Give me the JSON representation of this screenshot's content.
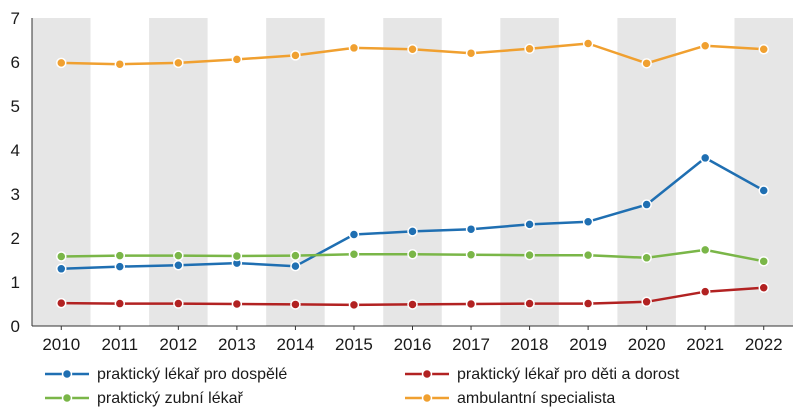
{
  "chart_data": {
    "type": "line",
    "title": "",
    "xlabel": "",
    "ylabel": "",
    "categories": [
      "2010",
      "2011",
      "2012",
      "2013",
      "2014",
      "2015",
      "2016",
      "2017",
      "2018",
      "2019",
      "2020",
      "2021",
      "2022"
    ],
    "ylim": [
      0,
      7
    ],
    "yticks": [
      "0",
      "1",
      "2",
      "3",
      "4",
      "5",
      "6",
      "7"
    ],
    "grid": "alternating vertical column bands",
    "legend_position": "bottom",
    "series": [
      {
        "name": "praktický lékař pro dospělé",
        "color": "#1f6fb2",
        "values": [
          1.3,
          1.35,
          1.38,
          1.43,
          1.36,
          2.08,
          2.15,
          2.2,
          2.31,
          2.37,
          2.76,
          3.82,
          3.08
        ]
      },
      {
        "name": "praktický lékař pro děti a dorost",
        "color": "#b22222",
        "values": [
          0.52,
          0.51,
          0.51,
          0.5,
          0.49,
          0.48,
          0.49,
          0.5,
          0.51,
          0.51,
          0.55,
          0.78,
          0.87
        ]
      },
      {
        "name": "praktický zubní lékař",
        "color": "#7ab648",
        "values": [
          1.58,
          1.6,
          1.6,
          1.59,
          1.6,
          1.63,
          1.63,
          1.62,
          1.61,
          1.61,
          1.55,
          1.73,
          1.47
        ]
      },
      {
        "name": "ambulantní specialista",
        "color": "#f0a030",
        "values": [
          5.98,
          5.95,
          5.98,
          6.06,
          6.15,
          6.32,
          6.29,
          6.2,
          6.3,
          6.42,
          5.97,
          6.37,
          6.29
        ]
      }
    ],
    "band_color": "#e6e6e6"
  }
}
